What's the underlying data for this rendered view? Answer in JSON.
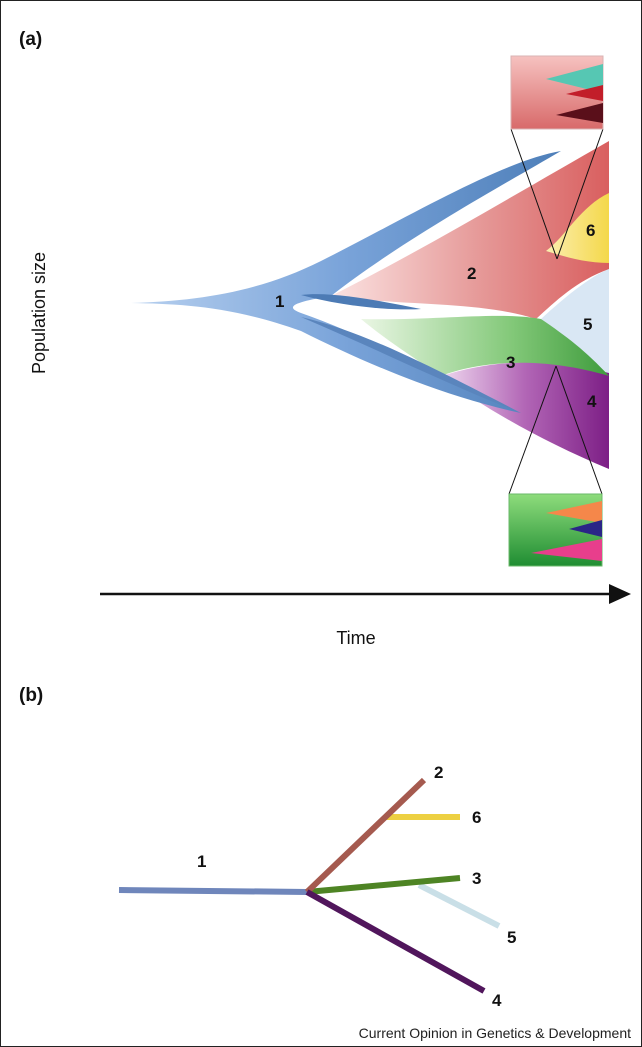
{
  "panel_a": {
    "label": "(a)",
    "y_axis_label": "Population size",
    "x_axis_label": "Time",
    "clones": [
      {
        "id": "1",
        "label": "1"
      },
      {
        "id": "2",
        "label": "2"
      },
      {
        "id": "3",
        "label": "3"
      },
      {
        "id": "4",
        "label": "4"
      },
      {
        "id": "5",
        "label": "5"
      },
      {
        "id": "6",
        "label": "6"
      }
    ]
  },
  "panel_b": {
    "label": "(b)",
    "branches": [
      {
        "id": "1",
        "label": "1",
        "color": "#6f86bb"
      },
      {
        "id": "2",
        "label": "2",
        "color": "#a55a4f"
      },
      {
        "id": "6",
        "label": "6",
        "color": "#edd042"
      },
      {
        "id": "3",
        "label": "3",
        "color": "#4e8424"
      },
      {
        "id": "5",
        "label": "5",
        "color": "#c9dfe7"
      },
      {
        "id": "4",
        "label": "4",
        "color": "#51165c"
      }
    ]
  },
  "colors": {
    "clone1": "#5f8fcc",
    "clone2": "#dc7575",
    "clone3": "#57b453",
    "clone4": "#8e2e93",
    "clone5": "#d9e7f4",
    "clone6": "#f7df6a"
  },
  "footer": {
    "credit": "Current Opinion in Genetics & Development"
  }
}
